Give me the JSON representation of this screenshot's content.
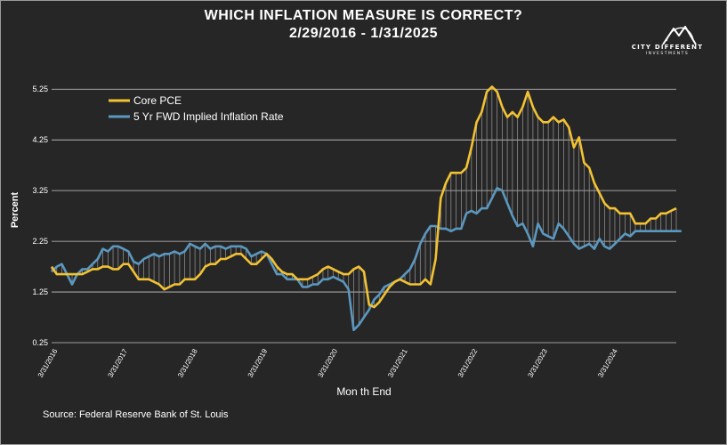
{
  "title": {
    "line1": "WHICH INFLATION MEASURE IS CORRECT?",
    "line2": "2/29/2016 - 1/31/2025"
  },
  "logo": {
    "name": "CITY DIFFERENT",
    "tagline": "INVESTMENTS",
    "icon": "mountain-peaks-icon"
  },
  "source": "Source: Federal Reserve Bank of St. Louis",
  "colors": {
    "background": "#262626",
    "core_pce": "#f2c233",
    "fwd_rate": "#5b98c0",
    "grid": "#c8c8c8",
    "fill_lines": "#9a9a9a"
  },
  "chart_data": {
    "type": "line",
    "xlabel": "Mon th End",
    "ylabel": "Percent",
    "ylim": [
      0.25,
      5.5
    ],
    "yticks": [
      "0.25",
      "1.25",
      "2.25",
      "3.25",
      "4.25",
      "5.25"
    ],
    "xticks": [
      "3/31/2016",
      "3/31/2017",
      "3/31/2018",
      "3/31/2019",
      "3/31/2020",
      "3/31/2021",
      "3/31/2022",
      "3/31/2023",
      "3/31/2024"
    ],
    "x_start": "2016-02-29",
    "x_end": "2025-01-31",
    "legend_position": "top-left",
    "series": [
      {
        "name": "Core PCE",
        "color": "#f2c233",
        "values": [
          1.75,
          1.6,
          1.6,
          1.6,
          1.6,
          1.6,
          1.6,
          1.65,
          1.7,
          1.7,
          1.75,
          1.75,
          1.7,
          1.7,
          1.8,
          1.8,
          1.65,
          1.5,
          1.5,
          1.5,
          1.45,
          1.4,
          1.3,
          1.35,
          1.4,
          1.4,
          1.5,
          1.5,
          1.5,
          1.6,
          1.75,
          1.8,
          1.8,
          1.9,
          1.9,
          1.95,
          2.0,
          2.0,
          1.9,
          1.8,
          1.8,
          1.9,
          2.0,
          1.9,
          1.75,
          1.65,
          1.6,
          1.6,
          1.5,
          1.5,
          1.5,
          1.55,
          1.6,
          1.7,
          1.75,
          1.7,
          1.65,
          1.6,
          1.6,
          1.7,
          1.75,
          1.65,
          1.0,
          0.95,
          1.05,
          1.2,
          1.35,
          1.45,
          1.5,
          1.45,
          1.4,
          1.4,
          1.4,
          1.5,
          1.4,
          1.9,
          3.1,
          3.4,
          3.6,
          3.6,
          3.6,
          3.7,
          4.1,
          4.6,
          4.8,
          5.2,
          5.3,
          5.2,
          4.9,
          4.7,
          4.8,
          4.7,
          4.9,
          5.2,
          4.9,
          4.7,
          4.6,
          4.6,
          4.7,
          4.6,
          4.65,
          4.5,
          4.1,
          4.3,
          3.8,
          3.7,
          3.4,
          3.2,
          3.0,
          2.9,
          2.9,
          2.8,
          2.8,
          2.8,
          2.6,
          2.6,
          2.6,
          2.7,
          2.7,
          2.8,
          2.8,
          2.85,
          2.9
        ]
      },
      {
        "name": "5 Yr FWD Implied Inflation Rate",
        "color": "#5b98c0",
        "values": [
          1.65,
          1.75,
          1.8,
          1.6,
          1.4,
          1.6,
          1.7,
          1.7,
          1.8,
          1.9,
          2.1,
          2.05,
          2.15,
          2.15,
          2.1,
          2.05,
          1.85,
          1.8,
          1.9,
          1.95,
          2.0,
          1.95,
          2.0,
          2.0,
          2.05,
          2.0,
          2.05,
          2.2,
          2.15,
          2.1,
          2.2,
          2.1,
          2.15,
          2.15,
          2.1,
          2.15,
          2.15,
          2.15,
          2.1,
          1.95,
          2.0,
          2.05,
          2.0,
          1.8,
          1.6,
          1.6,
          1.5,
          1.5,
          1.5,
          1.35,
          1.35,
          1.4,
          1.4,
          1.5,
          1.5,
          1.55,
          1.5,
          1.45,
          1.3,
          0.5,
          0.6,
          0.75,
          0.9,
          1.1,
          1.2,
          1.35,
          1.4,
          1.45,
          1.5,
          1.6,
          1.7,
          1.9,
          2.2,
          2.4,
          2.55,
          2.55,
          2.5,
          2.5,
          2.45,
          2.5,
          2.5,
          2.8,
          2.85,
          2.8,
          2.9,
          2.9,
          3.1,
          3.3,
          3.25,
          3.0,
          2.75,
          2.55,
          2.6,
          2.4,
          2.15,
          2.6,
          2.4,
          2.35,
          2.3,
          2.6,
          2.5,
          2.35,
          2.2,
          2.1,
          2.15,
          2.2,
          2.1,
          2.3,
          2.15,
          2.1,
          2.2,
          2.3,
          2.4,
          2.35,
          2.45,
          2.45,
          2.45,
          2.45,
          2.45,
          2.45,
          2.45,
          2.45,
          2.45,
          2.45
        ]
      }
    ]
  }
}
